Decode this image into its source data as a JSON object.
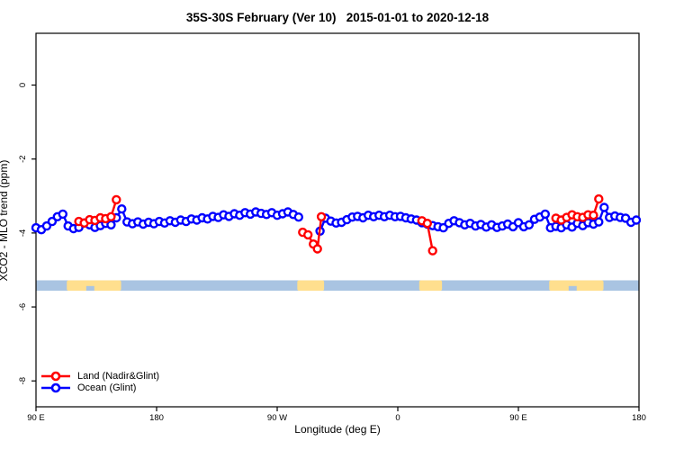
{
  "chart_data": {
    "type": "line",
    "title": "35S-30S February (Ver 10)   2015-01-01 to 2020-12-18",
    "xlabel": "Longitude (deg E)",
    "ylabel": "XCO2 - MLO trend (ppm)",
    "xlim": [
      90,
      540
    ],
    "ylim": [
      -8.7,
      1.4
    ],
    "grid": false,
    "x_ticks": [
      {
        "value": 90,
        "label": "90 E"
      },
      {
        "value": 180,
        "label": "180"
      },
      {
        "value": 270,
        "label": "90 W"
      },
      {
        "value": 360,
        "label": "0"
      },
      {
        "value": 450,
        "label": "90 E"
      },
      {
        "value": 540,
        "label": "180"
      }
    ],
    "y_ticks": [
      {
        "value": 0,
        "label": "0"
      },
      {
        "value": -2,
        "label": "-2"
      },
      {
        "value": -4,
        "label": "-4"
      },
      {
        "value": -6,
        "label": "-6"
      },
      {
        "value": -8,
        "label": "-8"
      }
    ],
    "map_strip": {
      "description": "world-map latitude band 35S-30S drawn across plot",
      "value_top": -5.28,
      "value_bottom": -5.56,
      "ocean_color": "#a9c4e2",
      "land_color": "#ffdf8e",
      "land_patches_lon": [
        [
          113,
          153.5
        ],
        [
          285,
          305
        ],
        [
          376,
          393
        ],
        [
          473,
          513.5
        ]
      ],
      "ocean_notches_lon": [
        [
          127.5,
          133.5
        ],
        [
          487.5,
          493.5
        ]
      ]
    },
    "series": [
      {
        "name": "Ocean (Glint)",
        "color": "#0000ff",
        "marker": "open-circle",
        "segments": [
          [
            [
              90,
              -3.86
            ],
            [
              94,
              -3.91
            ],
            [
              98,
              -3.81
            ],
            [
              102,
              -3.69
            ],
            [
              106,
              -3.56
            ],
            [
              110,
              -3.49
            ],
            [
              114,
              -3.81
            ],
            [
              118,
              -3.88
            ],
            [
              122,
              -3.85
            ],
            [
              126,
              -3.73
            ],
            [
              130,
              -3.78
            ],
            [
              134,
              -3.85
            ],
            [
              138,
              -3.8
            ],
            [
              142,
              -3.74
            ],
            [
              146,
              -3.78
            ],
            [
              150,
              -3.59
            ],
            [
              154,
              -3.35
            ],
            [
              158,
              -3.7
            ],
            [
              162,
              -3.75
            ],
            [
              166,
              -3.7
            ],
            [
              170,
              -3.76
            ],
            [
              174,
              -3.71
            ],
            [
              178,
              -3.75
            ],
            [
              182,
              -3.69
            ],
            [
              186,
              -3.73
            ],
            [
              190,
              -3.67
            ],
            [
              194,
              -3.71
            ],
            [
              198,
              -3.65
            ],
            [
              202,
              -3.69
            ],
            [
              206,
              -3.62
            ],
            [
              210,
              -3.65
            ],
            [
              214,
              -3.59
            ],
            [
              218,
              -3.62
            ],
            [
              222,
              -3.55
            ],
            [
              226,
              -3.58
            ],
            [
              230,
              -3.51
            ],
            [
              234,
              -3.55
            ],
            [
              238,
              -3.48
            ],
            [
              242,
              -3.52
            ],
            [
              246,
              -3.45
            ],
            [
              250,
              -3.49
            ],
            [
              254,
              -3.43
            ],
            [
              258,
              -3.47
            ],
            [
              262,
              -3.5
            ],
            [
              266,
              -3.45
            ],
            [
              270,
              -3.52
            ],
            [
              274,
              -3.48
            ],
            [
              278,
              -3.43
            ],
            [
              282,
              -3.5
            ],
            [
              286,
              -3.57
            ]
          ],
          [
            [
              302,
              -3.95
            ],
            [
              306,
              -3.6
            ],
            [
              310,
              -3.68
            ],
            [
              314,
              -3.73
            ],
            [
              318,
              -3.71
            ],
            [
              322,
              -3.64
            ],
            [
              326,
              -3.57
            ],
            [
              330,
              -3.55
            ],
            [
              334,
              -3.59
            ],
            [
              338,
              -3.52
            ],
            [
              342,
              -3.56
            ],
            [
              346,
              -3.52
            ],
            [
              350,
              -3.56
            ],
            [
              354,
              -3.52
            ],
            [
              358,
              -3.56
            ],
            [
              362,
              -3.55
            ],
            [
              366,
              -3.59
            ],
            [
              370,
              -3.62
            ],
            [
              374,
              -3.65
            ],
            [
              378,
              -3.72
            ],
            [
              382,
              -3.76
            ],
            [
              386,
              -3.8
            ],
            [
              390,
              -3.83
            ],
            [
              394,
              -3.86
            ],
            [
              398,
              -3.74
            ],
            [
              402,
              -3.67
            ],
            [
              406,
              -3.72
            ],
            [
              410,
              -3.78
            ],
            [
              414,
              -3.74
            ],
            [
              418,
              -3.81
            ],
            [
              422,
              -3.77
            ],
            [
              426,
              -3.84
            ],
            [
              430,
              -3.78
            ],
            [
              434,
              -3.85
            ],
            [
              438,
              -3.81
            ],
            [
              442,
              -3.76
            ],
            [
              446,
              -3.83
            ],
            [
              450,
              -3.72
            ],
            [
              454,
              -3.83
            ],
            [
              458,
              -3.78
            ],
            [
              462,
              -3.63
            ],
            [
              466,
              -3.57
            ],
            [
              470,
              -3.49
            ],
            [
              474,
              -3.86
            ],
            [
              478,
              -3.82
            ],
            [
              482,
              -3.86
            ],
            [
              486,
              -3.78
            ],
            [
              490,
              -3.84
            ],
            [
              494,
              -3.74
            ],
            [
              498,
              -3.8
            ],
            [
              502,
              -3.72
            ],
            [
              506,
              -3.76
            ],
            [
              510,
              -3.7
            ],
            [
              514,
              -3.31
            ],
            [
              518,
              -3.58
            ],
            [
              522,
              -3.54
            ],
            [
              526,
              -3.58
            ],
            [
              530,
              -3.6
            ],
            [
              534,
              -3.71
            ],
            [
              538,
              -3.65
            ]
          ]
        ]
      },
      {
        "name": "Land (Nadir&Glint)",
        "color": "#ff0000",
        "marker": "open-circle",
        "segments": [
          [
            [
              122,
              -3.69
            ],
            [
              126,
              -3.73
            ],
            [
              130,
              -3.64
            ],
            [
              134,
              -3.66
            ],
            [
              138,
              -3.59
            ],
            [
              142,
              -3.61
            ],
            [
              146,
              -3.56
            ],
            [
              150,
              -3.1
            ]
          ],
          [
            [
              289,
              -3.98
            ],
            [
              293,
              -4.05
            ],
            [
              297,
              -4.3
            ],
            [
              300,
              -4.43
            ],
            [
              303,
              -3.56
            ]
          ],
          [
            [
              378,
              -3.67
            ],
            [
              382,
              -3.74
            ],
            [
              386,
              -4.48
            ]
          ],
          [
            [
              478,
              -3.6
            ],
            [
              482,
              -3.65
            ],
            [
              486,
              -3.58
            ],
            [
              490,
              -3.51
            ],
            [
              494,
              -3.56
            ],
            [
              498,
              -3.58
            ],
            [
              502,
              -3.51
            ],
            [
              506,
              -3.52
            ],
            [
              510,
              -3.08
            ]
          ]
        ]
      }
    ]
  },
  "legend": {
    "items": [
      {
        "label": "Land (Nadir&Glint)",
        "color": "#ff0000"
      },
      {
        "label": "Ocean (Glint)",
        "color": "#0000ff"
      }
    ]
  }
}
